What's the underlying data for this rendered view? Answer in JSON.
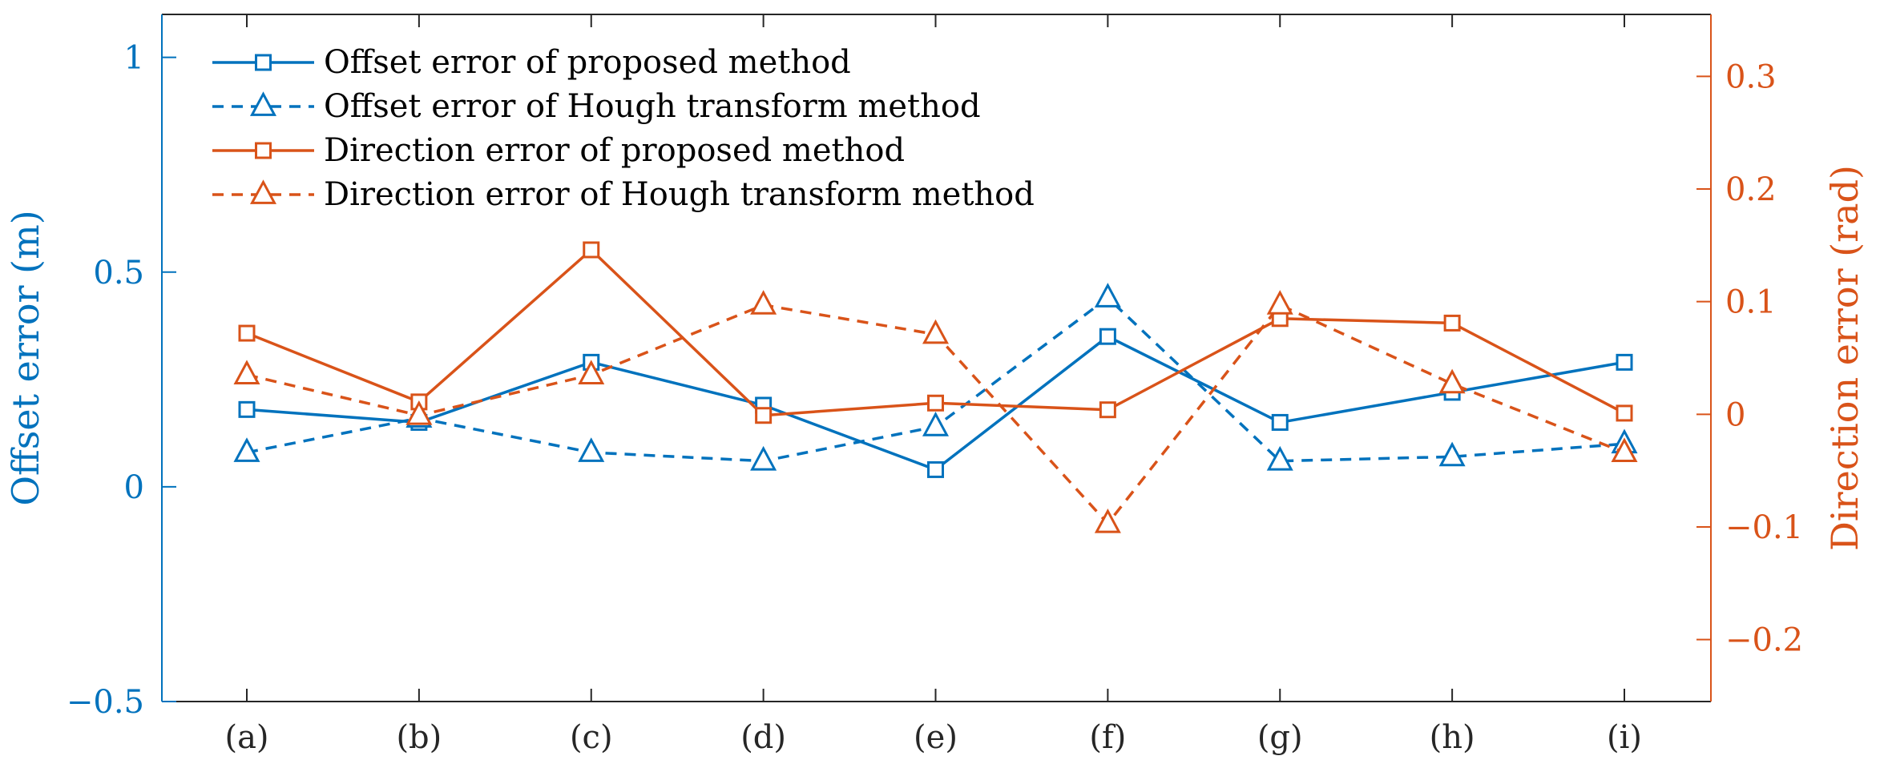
{
  "colors": {
    "blue": "#0072BD",
    "orange": "#D95319",
    "axis": "#262626"
  },
  "chart_data": {
    "type": "line",
    "categories": [
      "(a)",
      "(b)",
      "(c)",
      "(d)",
      "(e)",
      "(f)",
      "(g)",
      "(h)",
      "(i)"
    ],
    "left_axis": {
      "label": "Offset error (m)",
      "ylim": [
        -0.5,
        1.1
      ],
      "ticks": [
        -0.5,
        0,
        0.5,
        1
      ],
      "tick_labels": [
        "−0.5",
        "0",
        "0.5",
        "1"
      ]
    },
    "right_axis": {
      "label": "Direction error (rad)",
      "ylim": [
        -0.255,
        0.355
      ],
      "ticks": [
        -0.2,
        -0.1,
        0,
        0.1,
        0.2,
        0.3
      ],
      "tick_labels": [
        "−0.2",
        "−0.1",
        "0",
        "0.1",
        "0.2",
        "0.3"
      ]
    },
    "legend_position": "top-left",
    "series": [
      {
        "name": "Offset error of proposed method",
        "axis": "left",
        "color_key": "blue",
        "line_style": "solid",
        "marker": "square",
        "values": [
          0.18,
          0.15,
          0.29,
          0.19,
          0.04,
          0.35,
          0.15,
          0.22,
          0.29
        ]
      },
      {
        "name": "Offset error of Hough transform method",
        "axis": "left",
        "color_key": "blue",
        "line_style": "dashed",
        "marker": "triangle",
        "values": [
          0.08,
          0.16,
          0.08,
          0.06,
          0.14,
          0.44,
          0.06,
          0.07,
          0.1
        ]
      },
      {
        "name": "Direction error of proposed method",
        "axis": "right",
        "color_key": "orange",
        "line_style": "solid",
        "marker": "square",
        "values": [
          0.072,
          0.011,
          0.146,
          -0.001,
          0.01,
          0.004,
          0.085,
          0.081,
          0.001
        ]
      },
      {
        "name": "Direction error of Hough transform method",
        "axis": "right",
        "color_key": "orange",
        "line_style": "dashed",
        "marker": "triangle",
        "values": [
          0.035,
          -0.001,
          0.035,
          0.097,
          0.071,
          -0.097,
          0.097,
          0.027,
          -0.034
        ]
      }
    ]
  }
}
